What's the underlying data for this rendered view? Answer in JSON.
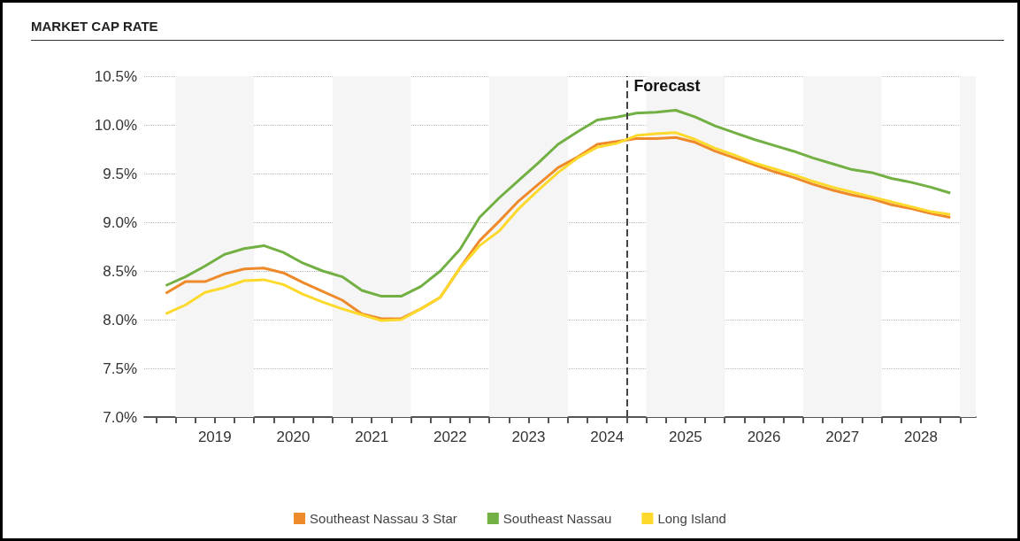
{
  "chart_data": {
    "type": "line",
    "title": "MARKET CAP RATE",
    "x": [
      2018.875,
      2019.125,
      2019.375,
      2019.625,
      2019.875,
      2020.125,
      2020.375,
      2020.625,
      2020.875,
      2021.125,
      2021.375,
      2021.625,
      2021.875,
      2022.125,
      2022.375,
      2022.625,
      2022.875,
      2023.125,
      2023.375,
      2023.625,
      2023.875,
      2024.125,
      2024.375,
      2024.625,
      2024.875,
      2025.125,
      2025.375,
      2025.625,
      2025.875,
      2026.125,
      2026.375,
      2026.625,
      2026.875,
      2027.125,
      2027.375,
      2027.625,
      2027.875,
      2028.125,
      2028.375,
      2028.625,
      2028.875
    ],
    "series": [
      {
        "name": "Southeast Nassau 3 Star",
        "color": "#ee8a2a",
        "values": [
          8.27,
          8.39,
          8.39,
          8.47,
          8.52,
          8.53,
          8.48,
          8.38,
          8.29,
          8.2,
          8.06,
          8.01,
          8.01,
          8.11,
          8.23,
          8.53,
          8.81,
          9.01,
          9.22,
          9.39,
          9.56,
          9.67,
          9.8,
          9.83,
          9.86,
          9.86,
          9.87,
          9.82,
          9.73,
          9.66,
          9.59,
          9.52,
          9.46,
          9.39,
          9.33,
          9.28,
          9.24,
          9.18,
          9.14,
          9.09,
          9.05
        ]
      },
      {
        "name": "Southeast Nassau",
        "color": "#72b043",
        "values": [
          8.35,
          8.44,
          8.55,
          8.67,
          8.73,
          8.76,
          8.69,
          8.58,
          8.5,
          8.44,
          8.3,
          8.24,
          8.24,
          8.34,
          8.5,
          8.72,
          9.05,
          9.25,
          9.43,
          9.61,
          9.8,
          9.93,
          10.05,
          10.08,
          10.12,
          10.13,
          10.15,
          10.08,
          9.99,
          9.92,
          9.85,
          9.79,
          9.73,
          9.66,
          9.6,
          9.54,
          9.51,
          9.45,
          9.41,
          9.36,
          9.3
        ]
      },
      {
        "name": "Long Island",
        "color": "#fcd92a",
        "values": [
          8.06,
          8.15,
          8.28,
          8.33,
          8.4,
          8.41,
          8.36,
          8.26,
          8.18,
          8.11,
          8.05,
          7.99,
          8.0,
          8.11,
          8.23,
          8.53,
          8.76,
          8.91,
          9.14,
          9.33,
          9.51,
          9.66,
          9.77,
          9.81,
          9.89,
          9.91,
          9.92,
          9.85,
          9.76,
          9.69,
          9.61,
          9.55,
          9.49,
          9.42,
          9.36,
          9.31,
          9.26,
          9.21,
          9.16,
          9.11,
          9.08
        ]
      }
    ],
    "xlim": [
      2018.6,
      2029.2
    ],
    "xticks": [
      {
        "value": 2018.75,
        "label": null
      },
      {
        "value": 2019,
        "label": null
      },
      {
        "value": 2019.25,
        "label": null
      },
      {
        "value": 2019.5,
        "label": "2019"
      },
      {
        "value": 2019.75,
        "label": null
      },
      {
        "value": 2020,
        "label": null
      },
      {
        "value": 2020.25,
        "label": null
      },
      {
        "value": 2020.5,
        "label": "2020"
      },
      {
        "value": 2020.75,
        "label": null
      },
      {
        "value": 2021,
        "label": null
      },
      {
        "value": 2021.25,
        "label": null
      },
      {
        "value": 2021.5,
        "label": "2021"
      },
      {
        "value": 2021.75,
        "label": null
      },
      {
        "value": 2022,
        "label": null
      },
      {
        "value": 2022.25,
        "label": null
      },
      {
        "value": 2022.5,
        "label": "2022"
      },
      {
        "value": 2022.75,
        "label": null
      },
      {
        "value": 2023,
        "label": null
      },
      {
        "value": 2023.25,
        "label": null
      },
      {
        "value": 2023.5,
        "label": "2023"
      },
      {
        "value": 2023.75,
        "label": null
      },
      {
        "value": 2024,
        "label": null
      },
      {
        "value": 2024.25,
        "label": null
      },
      {
        "value": 2024.5,
        "label": "2024"
      },
      {
        "value": 2024.75,
        "label": null
      },
      {
        "value": 2025,
        "label": null
      },
      {
        "value": 2025.25,
        "label": null
      },
      {
        "value": 2025.5,
        "label": "2025"
      },
      {
        "value": 2025.75,
        "label": null
      },
      {
        "value": 2026,
        "label": null
      },
      {
        "value": 2026.25,
        "label": null
      },
      {
        "value": 2026.5,
        "label": "2026"
      },
      {
        "value": 2026.75,
        "label": null
      },
      {
        "value": 2027,
        "label": null
      },
      {
        "value": 2027.25,
        "label": null
      },
      {
        "value": 2027.5,
        "label": "2027"
      },
      {
        "value": 2027.75,
        "label": null
      },
      {
        "value": 2028,
        "label": null
      },
      {
        "value": 2028.25,
        "label": null
      },
      {
        "value": 2028.5,
        "label": "2028"
      },
      {
        "value": 2028.75,
        "label": null
      },
      {
        "value": 2029,
        "label": null
      }
    ],
    "ylim": [
      7.0,
      10.5
    ],
    "yticks": [
      {
        "value": 7.0,
        "label": "7.0%"
      },
      {
        "value": 7.5,
        "label": "7.5%"
      },
      {
        "value": 8.0,
        "label": "8.0%"
      },
      {
        "value": 8.5,
        "label": "8.5%"
      },
      {
        "value": 9.0,
        "label": "9.0%"
      },
      {
        "value": 9.5,
        "label": "9.5%"
      },
      {
        "value": 10.0,
        "label": "10.0%"
      },
      {
        "value": 10.5,
        "label": "10.5%"
      }
    ],
    "grid": "y",
    "legend": "bottom",
    "ref_lines": [
      {
        "axis": "x",
        "value": 2024.75,
        "label": "Forecast",
        "color": "#444444",
        "line_style": "dashed"
      }
    ],
    "bands": [
      {
        "axis": "x",
        "from": 2019,
        "to": 2020,
        "color": "#f5f5f5"
      },
      {
        "axis": "x",
        "from": 2021,
        "to": 2022,
        "color": "#f5f5f5"
      },
      {
        "axis": "x",
        "from": 2023,
        "to": 2024,
        "color": "#f5f5f5"
      },
      {
        "axis": "x",
        "from": 2025,
        "to": 2026,
        "color": "#f5f5f5"
      },
      {
        "axis": "x",
        "from": 2027,
        "to": 2028,
        "color": "#f5f5f5"
      },
      {
        "axis": "x",
        "from": 2029,
        "to": 2029.2,
        "color": "#f5f5f5"
      }
    ]
  }
}
